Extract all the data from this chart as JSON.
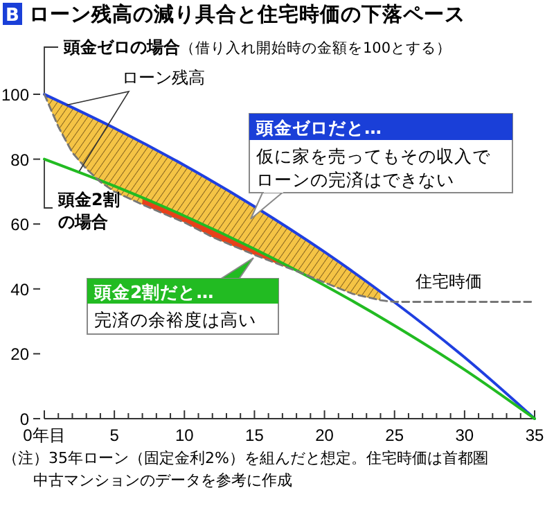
{
  "chart_data": {
    "type": "line",
    "title": "ローン残高の減り具合と住宅時価の下落ペース",
    "annotations": [
      "B",
      "（借り入れ開始時の金額を100とする）",
      "ローン残高",
      "頭金ゼロだと…",
      "仮に家を売ってもその収入でローンの完済はできない",
      "頭金2割だと…",
      "完済の余裕度は高い",
      "（注）35年ローン（固定金利2%）を組んだと想定。住宅時価は首都圏中古マンションのデータを参考に作成"
    ],
    "x": [
      0,
      5,
      10,
      15,
      20,
      25,
      30,
      35
    ],
    "series": [
      {
        "name": "頭金ゼロの場合",
        "color": "#1f3fe0",
        "values": [
          100,
          89.6,
          78.1,
          65.4,
          51.4,
          35.9,
          18.9,
          0
        ]
      },
      {
        "name": "頭金2割の場合",
        "color": "#22bb22",
        "values": [
          80,
          71.7,
          62.5,
          52.3,
          41.1,
          28.7,
          15.1,
          0
        ]
      },
      {
        "name": "住宅時価",
        "color": "#777777",
        "line_style": "dashed",
        "x": [
          0,
          1,
          2,
          3,
          4,
          5,
          7,
          10,
          12,
          15,
          18,
          20,
          22,
          24,
          25,
          35
        ],
        "values": [
          100,
          90,
          82,
          77,
          73,
          70,
          66,
          60.5,
          56,
          50.5,
          45.5,
          42,
          38.5,
          36.5,
          36,
          36
        ]
      }
    ],
    "xlim": [
      0,
      35
    ],
    "ylim": [
      0,
      100
    ],
    "xticks": [
      {
        "value": 0,
        "label": "0年目"
      },
      {
        "value": 1,
        "label": null
      },
      {
        "value": 2,
        "label": null
      },
      {
        "value": 3,
        "label": null
      },
      {
        "value": 4,
        "label": null
      },
      5,
      {
        "value": 6,
        "label": null
      },
      {
        "value": 7,
        "label": null
      },
      {
        "value": 8,
        "label": null
      },
      {
        "value": 9,
        "label": null
      },
      10,
      {
        "value": 11,
        "label": null
      },
      {
        "value": 12,
        "label": null
      },
      {
        "value": 13,
        "label": null
      },
      {
        "value": 14,
        "label": null
      },
      15,
      {
        "value": 16,
        "label": null
      },
      {
        "value": 17,
        "label": null
      },
      {
        "value": 18,
        "label": null
      },
      {
        "value": 19,
        "label": null
      },
      20,
      {
        "value": 21,
        "label": null
      },
      {
        "value": 22,
        "label": null
      },
      {
        "value": 23,
        "label": null
      },
      {
        "value": 24,
        "label": null
      },
      25,
      {
        "value": 26,
        "label": null
      },
      {
        "value": 27,
        "label": null
      },
      {
        "value": 28,
        "label": null
      },
      {
        "value": 29,
        "label": null
      },
      30,
      {
        "value": 31,
        "label": null
      },
      {
        "value": 32,
        "label": null
      },
      {
        "value": 33,
        "label": null
      },
      {
        "value": 34,
        "label": null
      },
      35
    ],
    "yticks": [
      0,
      20,
      40,
      60,
      80,
      100
    ],
    "grid": false,
    "marker": "none"
  }
}
